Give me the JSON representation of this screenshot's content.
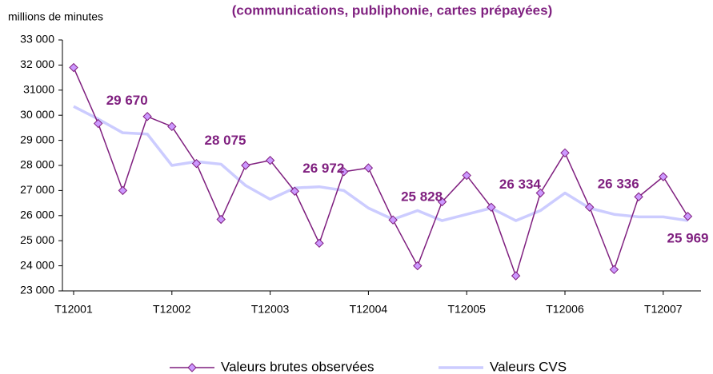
{
  "chart_data": {
    "type": "line",
    "title": "(communications, publiphonie, cartes prépayées)",
    "y_label": "millions de minutes",
    "categories": [
      "T12001",
      null,
      null,
      null,
      "T12002",
      null,
      null,
      null,
      "T12003",
      null,
      null,
      null,
      "T12004",
      null,
      null,
      null,
      "T12005",
      null,
      null,
      null,
      "T12006",
      null,
      null,
      null,
      "T12007",
      null
    ],
    "series": [
      {
        "name": "Valeurs brutes observées",
        "color": "#7f1f7f",
        "marker_color": "#cc99ff",
        "values": [
          31900,
          29670,
          27000,
          29950,
          29550,
          28075,
          25850,
          28000,
          28200,
          26972,
          24900,
          27750,
          27900,
          25828,
          24000,
          26550,
          27600,
          26334,
          23600,
          26900,
          28500,
          26336,
          23850,
          26750,
          27550,
          25969
        ],
        "value_labels": [
          null,
          "29 670",
          null,
          null,
          null,
          "28 075",
          null,
          null,
          null,
          "26 972",
          null,
          null,
          null,
          "25 828",
          null,
          null,
          null,
          "26 334",
          null,
          null,
          null,
          "26 336",
          null,
          null,
          null,
          "25 969"
        ]
      },
      {
        "name": "Valeurs CVS",
        "color": "#ccccff",
        "values": [
          30350,
          29850,
          29300,
          29250,
          28000,
          28150,
          28050,
          27200,
          26650,
          27100,
          27150,
          27000,
          26300,
          25850,
          26200,
          25800,
          26050,
          26300,
          25800,
          26200,
          26900,
          26300,
          26050,
          25950,
          25950,
          25800
        ]
      }
    ],
    "ylim": [
      23000,
      33000
    ],
    "yticks": [
      {
        "value": 23000,
        "label": "23 000"
      },
      {
        "value": 24000,
        "label": "24 000"
      },
      {
        "value": 25000,
        "label": "25 000"
      },
      {
        "value": 26000,
        "label": "26 000"
      },
      {
        "value": 27000,
        "label": "27 000"
      },
      {
        "value": 28000,
        "label": "28 000"
      },
      {
        "value": 29000,
        "label": "29 000"
      },
      {
        "value": 30000,
        "label": "30 000"
      },
      {
        "value": 31000,
        "label": "31000"
      },
      {
        "value": 32000,
        "label": "32 000"
      },
      {
        "value": 33000,
        "label": "33 000"
      }
    ],
    "legend": "bottom"
  }
}
